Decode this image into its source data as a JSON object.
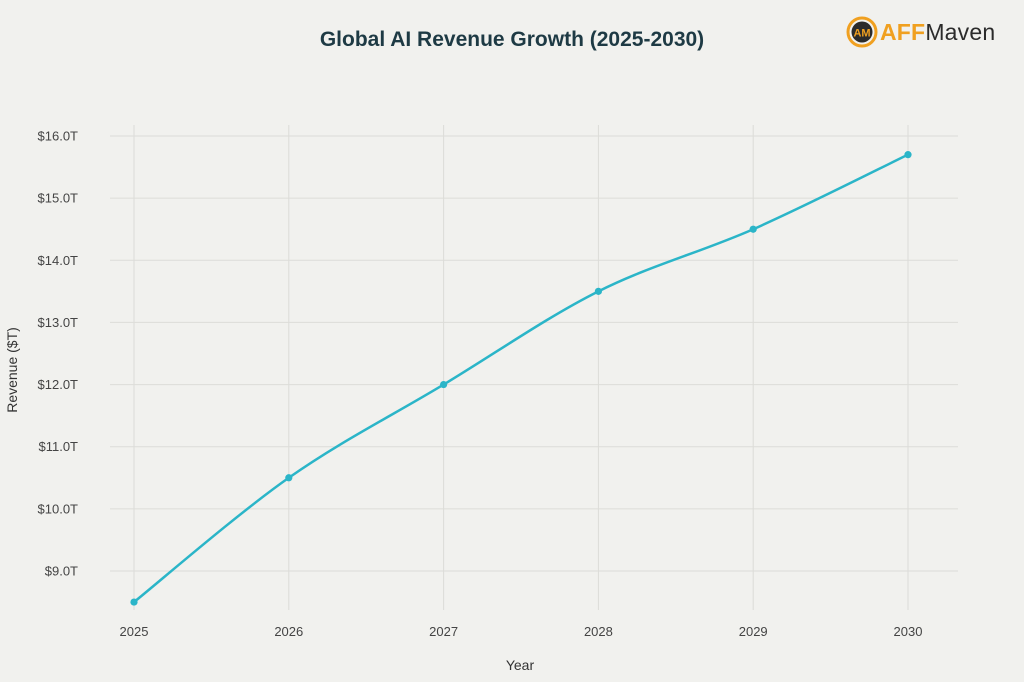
{
  "chart_data": {
    "type": "line",
    "title": "Global AI Revenue Growth (2025-2030)",
    "xlabel": "Year",
    "ylabel": "Revenue ($T)",
    "categories": [
      "2025",
      "2026",
      "2027",
      "2028",
      "2029",
      "2030"
    ],
    "series": [
      {
        "values": [
          8.5,
          10.5,
          12.0,
          13.5,
          14.5,
          15.7
        ],
        "color": "#2bb5c8"
      }
    ],
    "y_ticks": [
      9,
      10,
      11,
      12,
      13,
      14,
      15,
      16
    ],
    "y_tick_labels": [
      "$9.0T",
      "$10.0T",
      "$11.0T",
      "$12.0T",
      "$13.0T",
      "$14.0T",
      "$15.0T",
      "$16.0T"
    ],
    "ylim": [
      8.3,
      16.15
    ],
    "grid": true,
    "legend": "none"
  },
  "logo": {
    "aff": "AFF",
    "maven": "Maven",
    "mark_text": "AM"
  }
}
